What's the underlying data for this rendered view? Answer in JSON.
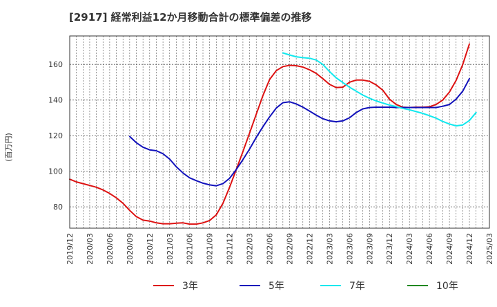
{
  "chart_data": {
    "type": "line",
    "title": "[2917]  経常利益12か月移動合計の標準偏差の推移",
    "ylabel": "(百万円)",
    "xlabel": "",
    "ylim": [
      68,
      176
    ],
    "y_ticks": [
      80,
      100,
      120,
      140,
      160
    ],
    "x_range": [
      "2019-12",
      "2025-03"
    ],
    "x_ticks": [
      "2019/12",
      "2020/03",
      "2020/06",
      "2020/09",
      "2020/12",
      "2021/03",
      "2021/06",
      "2021/09",
      "2021/12",
      "2022/03",
      "2022/06",
      "2022/09",
      "2022/12",
      "2023/03",
      "2023/06",
      "2023/09",
      "2023/12",
      "2024/03",
      "2024/06",
      "2024/09",
      "2024/12",
      "2025/03"
    ],
    "grid": true,
    "legend_position": "bottom",
    "series": [
      {
        "name": "3年",
        "color": "#dd1111",
        "points": [
          [
            "2019-12",
            95.5
          ],
          [
            "2020-01",
            94.0
          ],
          [
            "2020-02",
            93.0
          ],
          [
            "2020-03",
            92.0
          ],
          [
            "2020-04",
            91.0
          ],
          [
            "2020-05",
            89.5
          ],
          [
            "2020-06",
            87.5
          ],
          [
            "2020-07",
            85.0
          ],
          [
            "2020-08",
            82.0
          ],
          [
            "2020-09",
            78.0
          ],
          [
            "2020-10",
            74.5
          ],
          [
            "2020-11",
            72.5
          ],
          [
            "2020-12",
            72.0
          ],
          [
            "2021-01",
            71.0
          ],
          [
            "2021-02",
            70.5
          ],
          [
            "2021-03",
            70.5
          ],
          [
            "2021-04",
            70.8
          ],
          [
            "2021-05",
            71.0
          ],
          [
            "2021-06",
            70.3
          ],
          [
            "2021-07",
            70.3
          ],
          [
            "2021-08",
            71.0
          ],
          [
            "2021-09",
            72.3
          ],
          [
            "2021-10",
            75.5
          ],
          [
            "2021-11",
            82.0
          ],
          [
            "2021-12",
            91.0
          ],
          [
            "2022-01",
            101.0
          ],
          [
            "2022-02",
            111.0
          ],
          [
            "2022-03",
            121.5
          ],
          [
            "2022-04",
            132.0
          ],
          [
            "2022-05",
            142.5
          ],
          [
            "2022-06",
            151.5
          ],
          [
            "2022-07",
            156.5
          ],
          [
            "2022-08",
            158.8
          ],
          [
            "2022-09",
            159.5
          ],
          [
            "2022-10",
            159.3
          ],
          [
            "2022-11",
            158.5
          ],
          [
            "2022-12",
            157.0
          ],
          [
            "2023-01",
            155.0
          ],
          [
            "2023-02",
            152.0
          ],
          [
            "2023-03",
            148.8
          ],
          [
            "2023-04",
            147.0
          ],
          [
            "2023-05",
            147.2
          ],
          [
            "2023-06",
            150.0
          ],
          [
            "2023-07",
            151.2
          ],
          [
            "2023-08",
            151.2
          ],
          [
            "2023-09",
            150.5
          ],
          [
            "2023-10",
            148.5
          ],
          [
            "2023-11",
            145.5
          ],
          [
            "2023-12",
            140.5
          ],
          [
            "2024-01",
            137.5
          ],
          [
            "2024-02",
            136.0
          ],
          [
            "2024-03",
            135.8
          ],
          [
            "2024-04",
            136.0
          ],
          [
            "2024-05",
            136.0
          ],
          [
            "2024-06",
            136.2
          ],
          [
            "2024-07",
            137.5
          ],
          [
            "2024-08",
            140.0
          ],
          [
            "2024-09",
            144.5
          ],
          [
            "2024-10",
            151.0
          ],
          [
            "2024-11",
            160.0
          ],
          [
            "2024-12",
            171.5
          ]
        ]
      },
      {
        "name": "5年",
        "color": "#1111bb",
        "points": [
          [
            "2020-09",
            119.5
          ],
          [
            "2020-10",
            116.0
          ],
          [
            "2020-11",
            113.5
          ],
          [
            "2020-12",
            112.0
          ],
          [
            "2021-01",
            111.5
          ],
          [
            "2021-02",
            109.8
          ],
          [
            "2021-03",
            106.8
          ],
          [
            "2021-04",
            102.5
          ],
          [
            "2021-05",
            99.0
          ],
          [
            "2021-06",
            96.3
          ],
          [
            "2021-07",
            94.7
          ],
          [
            "2021-08",
            93.3
          ],
          [
            "2021-09",
            92.3
          ],
          [
            "2021-10",
            91.8
          ],
          [
            "2021-11",
            93.0
          ],
          [
            "2021-12",
            96.0
          ],
          [
            "2022-01",
            101.0
          ],
          [
            "2022-02",
            106.5
          ],
          [
            "2022-03",
            112.5
          ],
          [
            "2022-04",
            119.0
          ],
          [
            "2022-05",
            125.0
          ],
          [
            "2022-06",
            130.5
          ],
          [
            "2022-07",
            135.5
          ],
          [
            "2022-08",
            138.5
          ],
          [
            "2022-09",
            139.0
          ],
          [
            "2022-10",
            137.8
          ],
          [
            "2022-11",
            136.0
          ],
          [
            "2022-12",
            133.8
          ],
          [
            "2023-01",
            131.5
          ],
          [
            "2023-02",
            129.5
          ],
          [
            "2023-03",
            128.3
          ],
          [
            "2023-04",
            127.8
          ],
          [
            "2023-05",
            128.3
          ],
          [
            "2023-06",
            130.0
          ],
          [
            "2023-07",
            133.0
          ],
          [
            "2023-08",
            135.0
          ],
          [
            "2023-09",
            135.8
          ],
          [
            "2023-10",
            136.0
          ],
          [
            "2023-11",
            136.0
          ],
          [
            "2023-12",
            136.0
          ],
          [
            "2024-01",
            135.8
          ],
          [
            "2024-02",
            135.8
          ],
          [
            "2024-03",
            135.8
          ],
          [
            "2024-04",
            135.8
          ],
          [
            "2024-05",
            135.8
          ],
          [
            "2024-06",
            135.8
          ],
          [
            "2024-07",
            135.8
          ],
          [
            "2024-08",
            136.5
          ],
          [
            "2024-09",
            137.5
          ],
          [
            "2024-10",
            140.5
          ],
          [
            "2024-11",
            145.0
          ],
          [
            "2024-12",
            152.0
          ]
        ]
      },
      {
        "name": "7年",
        "color": "#11e8ee",
        "points": [
          [
            "2022-08",
            166.5
          ],
          [
            "2022-09",
            165.3
          ],
          [
            "2022-10",
            164.3
          ],
          [
            "2022-11",
            163.8
          ],
          [
            "2022-12",
            163.5
          ],
          [
            "2023-01",
            162.5
          ],
          [
            "2023-02",
            160.0
          ],
          [
            "2023-03",
            156.0
          ],
          [
            "2023-04",
            152.5
          ],
          [
            "2023-05",
            149.8
          ],
          [
            "2023-06",
            147.2
          ],
          [
            "2023-07",
            145.0
          ],
          [
            "2023-08",
            142.8
          ],
          [
            "2023-09",
            141.0
          ],
          [
            "2023-10",
            139.5
          ],
          [
            "2023-11",
            138.3
          ],
          [
            "2023-12",
            137.2
          ],
          [
            "2024-01",
            136.3
          ],
          [
            "2024-02",
            135.3
          ],
          [
            "2024-03",
            134.5
          ],
          [
            "2024-04",
            133.5
          ],
          [
            "2024-05",
            132.5
          ],
          [
            "2024-06",
            131.2
          ],
          [
            "2024-07",
            129.8
          ],
          [
            "2024-08",
            128.0
          ],
          [
            "2024-09",
            126.5
          ],
          [
            "2024-10",
            125.5
          ],
          [
            "2024-11",
            126.0
          ],
          [
            "2024-12",
            128.5
          ],
          [
            "2025-01",
            133.0
          ]
        ]
      },
      {
        "name": "10年",
        "color": "#228822",
        "points": []
      }
    ]
  }
}
